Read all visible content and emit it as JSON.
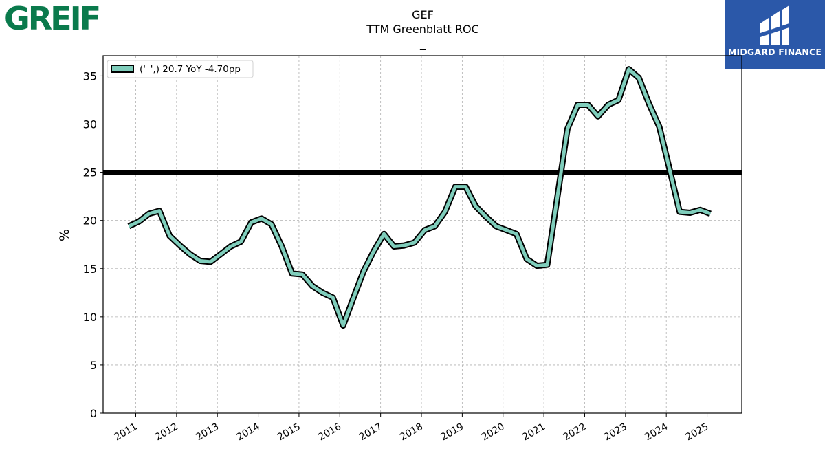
{
  "brand": {
    "left_logo_text": "GREIF",
    "left_logo_color": "#0a7a4c",
    "right_logo_text": "MIDGARD FINANCE",
    "right_logo_bg": "#2b58a9"
  },
  "chart_data": {
    "type": "line",
    "title": "GEF",
    "subtitle": "TTM Greenblatt ROC",
    "subtitle2": "_",
    "xlabel": "",
    "ylabel": "%",
    "ylim": [
      0,
      37.1
    ],
    "yticks": [
      0,
      5,
      10,
      15,
      20,
      25,
      30,
      35
    ],
    "xlim": [
      2010.2,
      2025.85
    ],
    "xticks": [
      "2011",
      "2012",
      "2013",
      "2014",
      "2015",
      "2016",
      "2017",
      "2018",
      "2019",
      "2020",
      "2021",
      "2022",
      "2023",
      "2024",
      "2025"
    ],
    "grid": true,
    "legend_position": "top-left",
    "reference_line": {
      "y": 25,
      "color": "#000000"
    },
    "series": [
      {
        "name": "('_',) 20.7 YoY -4.70pp",
        "color": "#7fcdbb",
        "edge_color": "#000000",
        "points": [
          [
            "2010-10-31",
            19.4
          ],
          [
            "2011-01-31",
            19.9
          ],
          [
            "2011-04-30",
            20.7
          ],
          [
            "2011-07-31",
            21.0
          ],
          [
            "2011-10-31",
            18.4
          ],
          [
            "2012-01-31",
            17.4
          ],
          [
            "2012-04-30",
            16.5
          ],
          [
            "2012-07-31",
            15.8
          ],
          [
            "2012-10-31",
            15.7
          ],
          [
            "2013-01-31",
            16.5
          ],
          [
            "2013-04-30",
            17.3
          ],
          [
            "2013-07-31",
            17.8
          ],
          [
            "2013-10-31",
            19.8
          ],
          [
            "2014-01-31",
            20.2
          ],
          [
            "2014-04-30",
            19.6
          ],
          [
            "2014-07-31",
            17.3
          ],
          [
            "2014-10-31",
            14.5
          ],
          [
            "2015-01-31",
            14.4
          ],
          [
            "2015-04-30",
            13.2
          ],
          [
            "2015-07-31",
            12.5
          ],
          [
            "2015-10-31",
            12.0
          ],
          [
            "2016-01-31",
            9.1
          ],
          [
            "2016-04-30",
            11.9
          ],
          [
            "2016-07-31",
            14.7
          ],
          [
            "2016-10-31",
            16.8
          ],
          [
            "2017-01-31",
            18.6
          ],
          [
            "2017-04-30",
            17.3
          ],
          [
            "2017-07-31",
            17.4
          ],
          [
            "2017-10-31",
            17.7
          ],
          [
            "2018-01-31",
            19.0
          ],
          [
            "2018-04-30",
            19.4
          ],
          [
            "2018-07-31",
            20.9
          ],
          [
            "2018-10-31",
            23.5
          ],
          [
            "2019-01-31",
            23.5
          ],
          [
            "2019-04-30",
            21.5
          ],
          [
            "2019-07-31",
            20.4
          ],
          [
            "2019-10-31",
            19.4
          ],
          [
            "2020-01-31",
            19.0
          ],
          [
            "2020-04-30",
            18.6
          ],
          [
            "2020-07-31",
            16.0
          ],
          [
            "2020-10-31",
            15.3
          ],
          [
            "2021-01-31",
            15.4
          ],
          [
            "2021-04-30",
            22.3
          ],
          [
            "2021-07-31",
            29.5
          ],
          [
            "2021-10-31",
            32.0
          ],
          [
            "2022-01-31",
            32.0
          ],
          [
            "2022-04-30",
            30.8
          ],
          [
            "2022-07-31",
            32.0
          ],
          [
            "2022-10-31",
            32.5
          ],
          [
            "2023-01-31",
            35.7
          ],
          [
            "2023-04-30",
            34.8
          ],
          [
            "2023-07-31",
            32.1
          ],
          [
            "2023-10-31",
            29.7
          ],
          [
            "2024-01-31",
            25.3
          ],
          [
            "2024-04-30",
            20.9
          ],
          [
            "2024-07-31",
            20.8
          ],
          [
            "2024-10-31",
            21.1
          ],
          [
            "2025-01-31",
            20.7
          ]
        ]
      }
    ]
  }
}
